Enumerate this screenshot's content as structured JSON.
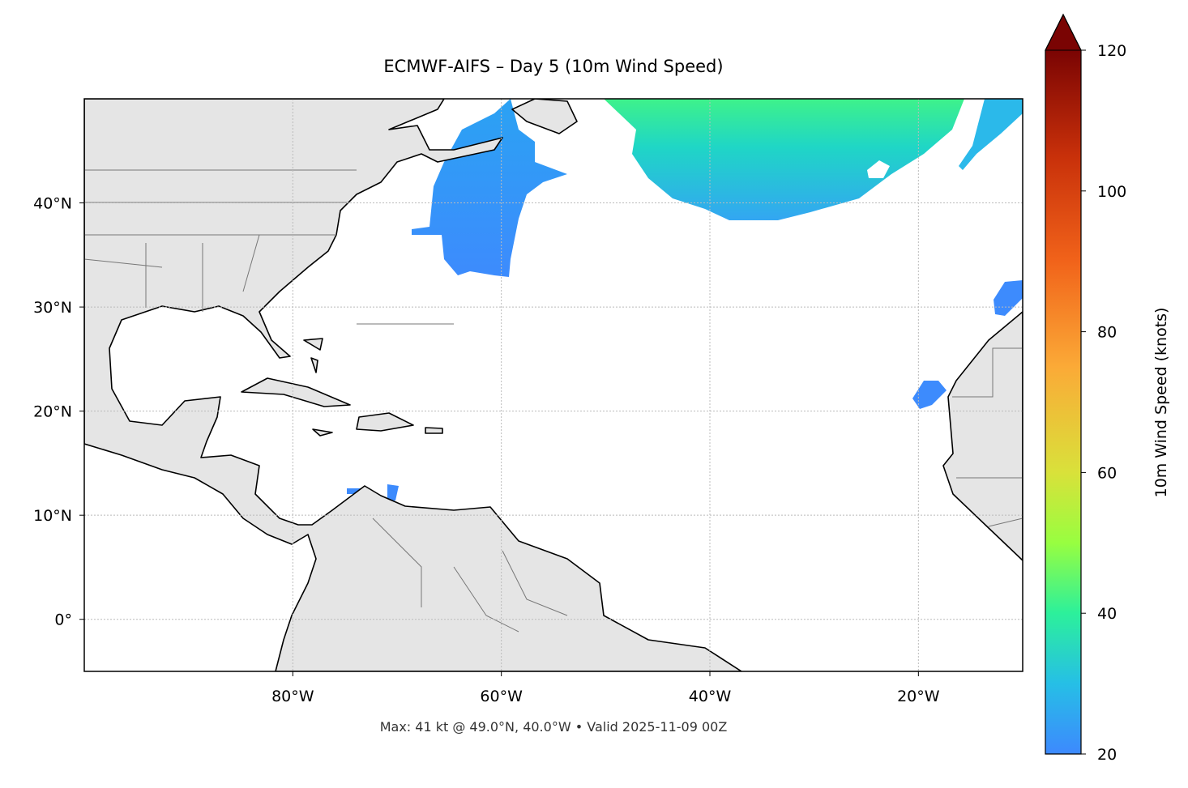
{
  "map": {
    "title": "ECMWF-AIFS – Day 5 (10m Wind Speed)",
    "extent": {
      "lon": [
        -100,
        -10
      ],
      "lat": [
        -5,
        50
      ]
    },
    "xticks": [
      {
        "value": -80,
        "label": "80°W"
      },
      {
        "value": -60,
        "label": "60°W"
      },
      {
        "value": -40,
        "label": "40°W"
      },
      {
        "value": -20,
        "label": "20°W"
      }
    ],
    "yticks": [
      {
        "value": 0,
        "label": "0°"
      },
      {
        "value": 10,
        "label": "10°N"
      },
      {
        "value": 20,
        "label": "20°N"
      },
      {
        "value": 30,
        "label": "30°N"
      },
      {
        "value": 40,
        "label": "40°N"
      }
    ],
    "grid": true,
    "footer": "Max: 41 kt @ 49.0°N, 40.0°W • Valid 2025-11-09 00Z",
    "colorbar": {
      "label": "10m Wind Speed (knots)",
      "lim": [
        20,
        120
      ],
      "ticks": [
        20,
        40,
        60,
        80,
        100,
        120
      ],
      "extend": "max"
    }
  }
}
